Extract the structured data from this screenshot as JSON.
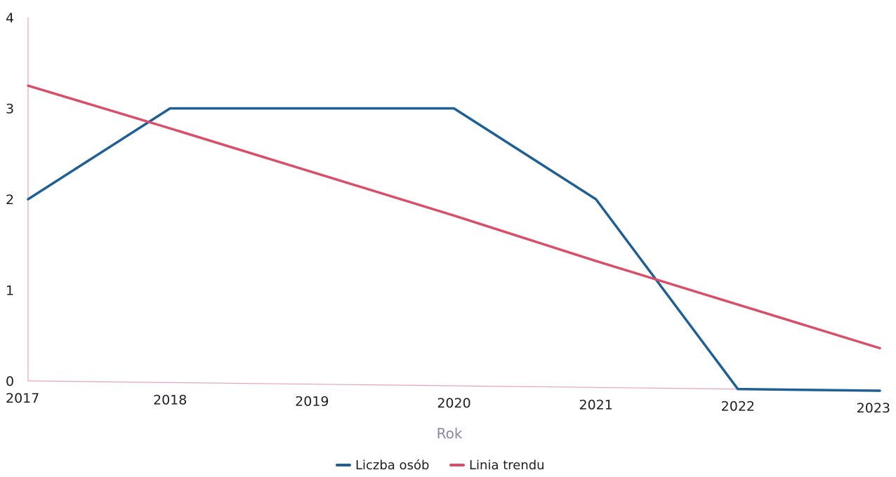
{
  "chart_data": {
    "type": "line",
    "categories": [
      "2017",
      "2018",
      "2019",
      "2020",
      "2021",
      "2022",
      "2023"
    ],
    "series": [
      {
        "name": "Liczba osób",
        "color": "#1f5f96",
        "values": [
          2,
          3,
          3,
          3,
          2,
          0,
          0
        ]
      },
      {
        "name": "Linia trendu",
        "color": "#d94f6a",
        "values": [
          3.25,
          2.78,
          2.3,
          1.82,
          1.32,
          0.84,
          0.36
        ]
      }
    ],
    "xlabel": "Rok",
    "ylabel": "",
    "title": "",
    "ylim": [
      0,
      4
    ],
    "yticks": [
      "0",
      "1",
      "2",
      "3",
      "4"
    ],
    "grid": false,
    "legend_position": "bottom-center",
    "axis_color": "#e6a3bf"
  }
}
